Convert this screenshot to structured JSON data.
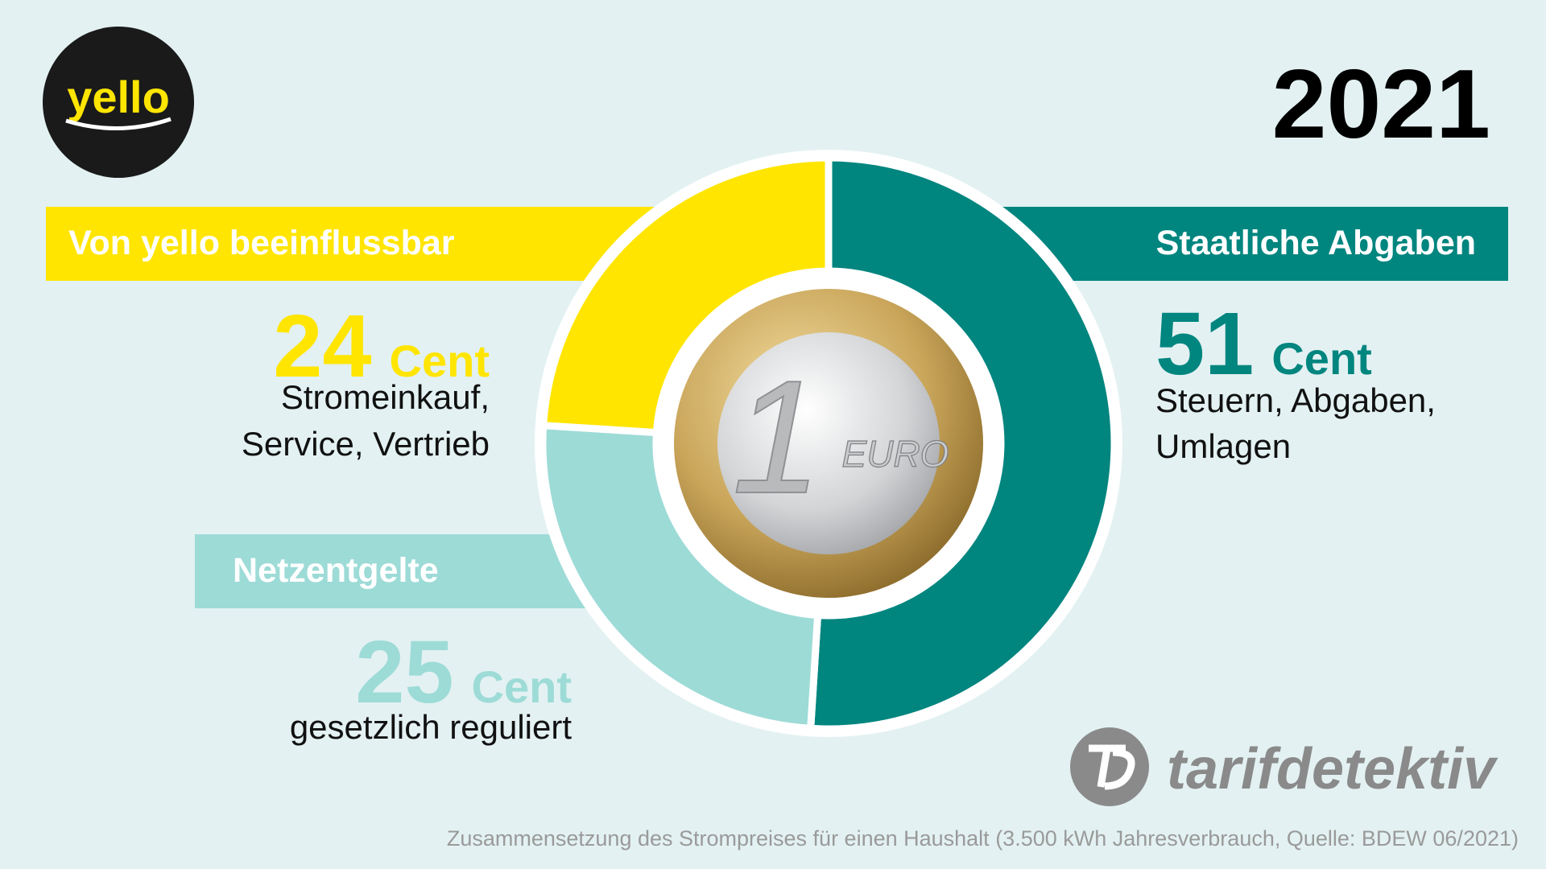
{
  "chart_data": {
    "type": "pie",
    "title": "2021",
    "brand": "yello",
    "categories": [
      "Staatliche Abgaben",
      "Netzentgelte",
      "Von yello beeinflussbar"
    ],
    "values": [
      51,
      25,
      24
    ],
    "unit": "Cent",
    "colors": [
      "#00857f",
      "#9ddbd7",
      "#ffe500"
    ],
    "descriptions": [
      [
        "Steuern, Abgaben,",
        "Umlagen"
      ],
      [
        "gesetzlich reguliert"
      ],
      [
        "Stromeinkauf,",
        "Service, Vertrieb"
      ]
    ],
    "coin": {
      "numeral": "1",
      "text": "EURO"
    },
    "source_logo": "tarifdetektiv",
    "footnote": "Zusammensetzung des Strompreises für einen Haushalt (3.500 kWh Jahresverbrauch, Quelle: BDEW 06/2021)"
  }
}
